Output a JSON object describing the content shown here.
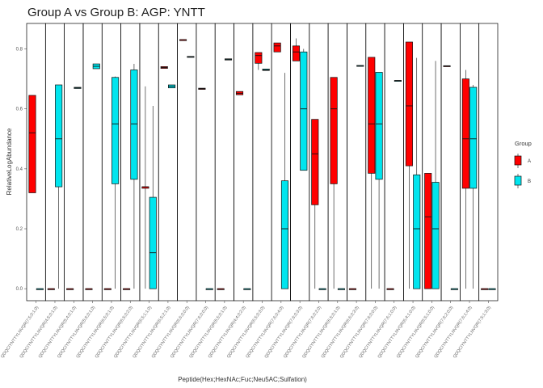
{
  "chart_data": {
    "type": "box",
    "title": "Group A vs Group B: AGP: YNTT",
    "xlabel": "Peptide(Hex;HexNAc;Fuc;Neu5AC;Sulfation)",
    "ylabel": "RelativeLogAbundance",
    "ylim": [
      -0.04,
      0.885
    ],
    "yticks": [
      "0.0",
      "0.2",
      "0.4",
      "0.6",
      "0.8"
    ],
    "grid": false,
    "legend": {
      "title": "Group",
      "position": "right"
    },
    "groups": [
      {
        "name": "A",
        "color": "#ff0000"
      },
      {
        "name": "B",
        "color": "#00e5ee"
      }
    ],
    "categories": [
      "QDQCIYNTTYLNVQR(7;5;0;1;0)",
      "QDQCIYNTTYLNVQR(4;5;0;1;0)",
      "QDQCIYNTTYLNVQR(5;4;0;1;0)",
      "QDQCIYNTTYLNVQR(5;6;0;1;0)",
      "QDQCIYNTTYLNVQR(6;5;0;1;0)",
      "QDQCIYNTTYLNVQR(6;5;0;2;0)",
      "QDQCIYNTTYLNVQR(6;5;1;1;0)",
      "QDQCIYNTTYLNVQR(6;5;2;1;0)",
      "QDQCIYNTTYLNVQR(6;6;0;0;0)",
      "QDQCIYNTTYLNVQR(7;6;0;0;0)",
      "QDQCIYNTTYLNVQR(5;5;0;1;0)",
      "QDQCIYNTTYLNVQR(4;4;0;2;0)",
      "QDQCIYNTTYLNVQR(6;5;0;3;0)",
      "QDQCIYNTTYLNVQR(7;6;0;4;0)",
      "QDQCIYNTTYLNVQR(7;6;0;3;0)",
      "QDQCIYNTTYLNVQR(7;6;0;2;0)",
      "QDQCIYNTTYLNVQR(6;5;0;1;0)",
      "QDQCIYNTTYLNVQR(6;6;0;3;0)",
      "QDQCIYNTTYLNVQR(7;6;0;0;0)",
      "QDQCIYNTTYLNVQR(7;6;1;0;0)",
      "QDQCIYNTTYLNVQR(6;4;1;0;0)",
      "QDQCIYNTTYLNVQR(6;5;1;0;0)",
      "QDQCIYNTTYLNVQR(7;6;2;0;0)",
      "QDQCIYNTTYLNVQR(7;6;1;4;0)",
      "QDQCIYNTTYLNVQR(7;5;1;3;0)"
    ],
    "series": [
      {
        "name": "A",
        "boxes": [
          [
            0.32,
            0.32,
            0.52,
            0.645,
            0.645
          ],
          [
            0.0,
            0.0,
            0.0,
            0.0,
            0.0
          ],
          [
            0.0,
            0.0,
            0.0,
            0.0,
            0.0
          ],
          [
            0.0,
            0.0,
            0.0,
            0.0,
            0.0
          ],
          [
            0.0,
            0.0,
            0.0,
            0.0,
            0.0
          ],
          [
            0.0,
            0.0,
            0.0,
            0.0,
            0.0
          ],
          [
            0.0,
            0.335,
            0.34,
            0.34,
            0.675
          ],
          [
            0.735,
            0.735,
            0.738,
            0.741,
            0.741
          ],
          [
            0.83,
            0.83,
            0.831,
            0.831,
            0.831
          ],
          [
            0.665,
            0.665,
            0.667,
            0.669,
            0.669
          ],
          [
            0.0,
            0.0,
            0.0,
            0.0,
            0.0
          ],
          [
            0.647,
            0.647,
            0.652,
            0.658,
            0.658
          ],
          [
            0.73,
            0.752,
            0.778,
            0.788,
            0.788
          ],
          [
            0.79,
            0.79,
            0.81,
            0.82,
            0.82
          ],
          [
            0.76,
            0.76,
            0.79,
            0.81,
            0.835
          ],
          [
            0.0,
            0.28,
            0.45,
            0.565,
            0.565
          ],
          [
            0.0,
            0.35,
            0.6,
            0.705,
            0.705
          ],
          [
            0.0,
            0.0,
            0.0,
            0.0,
            0.0
          ],
          [
            0.0,
            0.385,
            0.55,
            0.772,
            0.772
          ],
          [
            0.0,
            0.0,
            0.0,
            0.0,
            0.0
          ],
          [
            0.0,
            0.41,
            0.61,
            0.823,
            0.823
          ],
          [
            0.0,
            0.0,
            0.24,
            0.385,
            0.385
          ],
          [
            0.742,
            0.742,
            0.743,
            0.744,
            0.744
          ],
          [
            0.0,
            0.335,
            0.5,
            0.7,
            0.73
          ],
          [
            0.0,
            0.0,
            0.0,
            0.0,
            0.0
          ]
        ]
      },
      {
        "name": "B",
        "boxes": [
          [
            0.0,
            0.0,
            0.0,
            0.0,
            0.0
          ],
          [
            0.0,
            0.34,
            0.5,
            0.68,
            0.68
          ],
          [
            0.668,
            0.668,
            0.67,
            0.672,
            0.672
          ],
          [
            0.734,
            0.734,
            0.742,
            0.75,
            0.75
          ],
          [
            0.0,
            0.35,
            0.55,
            0.705,
            0.708
          ],
          [
            0.0,
            0.365,
            0.55,
            0.73,
            0.75
          ],
          [
            0.0,
            0.0,
            0.12,
            0.305,
            0.61
          ],
          [
            0.67,
            0.67,
            0.675,
            0.68,
            0.68
          ],
          [
            0.772,
            0.772,
            0.773,
            0.775,
            0.775
          ],
          [
            0.0,
            0.0,
            0.0,
            0.0,
            0.0
          ],
          [
            0.763,
            0.763,
            0.765,
            0.767,
            0.767
          ],
          [
            0.0,
            0.0,
            0.0,
            0.0,
            0.0
          ],
          [
            0.728,
            0.728,
            0.73,
            0.733,
            0.733
          ],
          [
            0.0,
            0.0,
            0.2,
            0.36,
            0.72
          ],
          [
            0.395,
            0.395,
            0.6,
            0.79,
            0.8
          ],
          [
            0.0,
            0.0,
            0.0,
            0.0,
            0.0
          ],
          [
            0.0,
            0.0,
            0.0,
            0.0,
            0.0
          ],
          [
            0.742,
            0.742,
            0.743,
            0.745,
            0.745
          ],
          [
            0.0,
            0.365,
            0.55,
            0.722,
            0.722
          ],
          [
            0.693,
            0.693,
            0.694,
            0.695,
            0.695
          ],
          [
            0.0,
            0.0,
            0.2,
            0.38,
            0.77
          ],
          [
            0.0,
            0.0,
            0.2,
            0.355,
            0.76
          ],
          [
            0.0,
            0.0,
            0.0,
            0.0,
            0.0
          ],
          [
            0.0,
            0.335,
            0.5,
            0.672,
            0.68
          ],
          [
            0.0,
            0.0,
            0.0,
            0.0,
            0.0
          ]
        ]
      }
    ]
  }
}
